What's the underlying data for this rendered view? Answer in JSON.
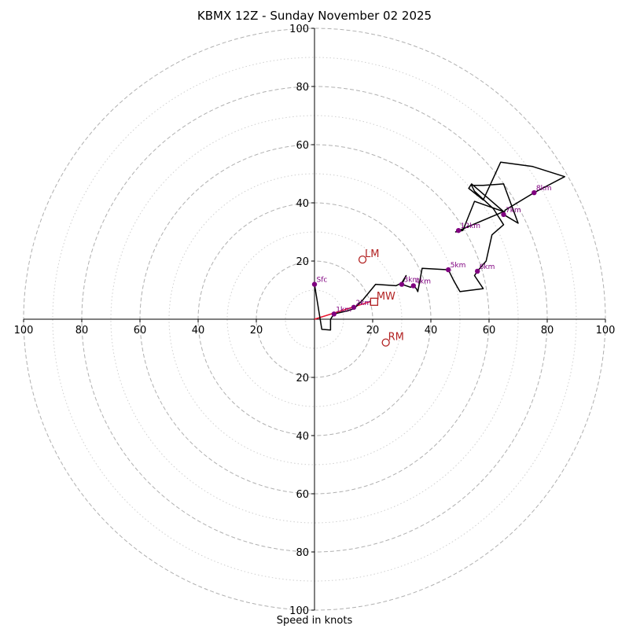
{
  "chart_data": {
    "type": "hodograph",
    "title": "KBMX 12Z - Sunday November 02 2025",
    "xlabel": "Speed in knots",
    "units": "knots",
    "range": [
      -100,
      100
    ],
    "major_rings": [
      20,
      40,
      60,
      80,
      100
    ],
    "minor_rings": [
      10,
      30,
      50,
      70,
      90
    ],
    "tick_labels": {
      "x_left": [
        "100",
        "80",
        "60",
        "40",
        "20"
      ],
      "x_right": [
        "20",
        "40",
        "60",
        "80",
        "100"
      ],
      "y_up": [
        "20",
        "40",
        "60",
        "80",
        "100"
      ],
      "y_down": [
        "20",
        "40",
        "60",
        "80",
        "100"
      ]
    },
    "trace": [
      [
        0,
        12
      ],
      [
        2.5,
        -3.5
      ],
      [
        5.5,
        -3.7
      ],
      [
        5.5,
        0
      ],
      [
        6.7,
        1.8
      ],
      [
        11,
        2.8
      ],
      [
        13.5,
        3.6
      ],
      [
        16.5,
        6.5
      ],
      [
        21,
        12
      ],
      [
        28,
        11.5
      ],
      [
        30,
        12.5
      ],
      [
        31.5,
        15
      ],
      [
        30,
        12
      ],
      [
        33,
        11
      ],
      [
        34,
        11.5
      ],
      [
        35,
        10.5
      ],
      [
        35.5,
        9.5
      ],
      [
        37,
        17.5
      ],
      [
        46,
        17
      ],
      [
        48,
        13
      ],
      [
        50,
        9.5
      ],
      [
        58,
        10.5
      ],
      [
        55,
        15
      ],
      [
        56,
        16.5
      ],
      [
        59,
        20
      ],
      [
        61,
        29
      ],
      [
        65,
        32.5
      ],
      [
        61.5,
        38
      ],
      [
        55,
        44
      ],
      [
        54,
        46
      ],
      [
        58,
        46
      ],
      [
        65,
        46.5
      ],
      [
        70,
        33
      ],
      [
        65,
        36
      ],
      [
        65.5,
        37.5
      ],
      [
        75.5,
        43.5
      ],
      [
        86,
        49
      ],
      [
        75,
        52.5
      ],
      [
        64,
        54
      ],
      [
        58,
        41
      ],
      [
        53,
        45
      ],
      [
        54,
        46.5
      ],
      [
        65,
        37
      ],
      [
        48.5,
        30
      ],
      [
        51,
        30.5
      ],
      [
        55,
        40.5
      ],
      [
        65,
        37
      ]
    ],
    "height_points": [
      {
        "label": "Sfc",
        "u": 0,
        "v": 12
      },
      {
        "label": "1km",
        "u": 6.7,
        "v": 1.8
      },
      {
        "label": "2km",
        "u": 13.5,
        "v": 4.1
      },
      {
        "label": "3km",
        "u": 30,
        "v": 12
      },
      {
        "label": "4km",
        "u": 34,
        "v": 11.5
      },
      {
        "label": "5km",
        "u": 46,
        "v": 17
      },
      {
        "label": "6km",
        "u": 56,
        "v": 16.5
      },
      {
        "label": "7km",
        "u": 65,
        "v": 36
      },
      {
        "label": "8km",
        "u": 75.5,
        "v": 43.5
      },
      {
        "label": "12km",
        "u": 49.5,
        "v": 30.5
      }
    ],
    "storm_motion": [
      {
        "label": "LM",
        "u": 16.5,
        "v": 20.5,
        "marker": "circle"
      },
      {
        "label": "RM",
        "u": 24.5,
        "v": -8,
        "marker": "circle"
      },
      {
        "label": "MW",
        "u": 20.5,
        "v": 6,
        "marker": "square"
      }
    ],
    "shear_vector": {
      "u0": 0,
      "v0": 0,
      "u1": 19,
      "v1": 6
    },
    "colors": {
      "trace": "#000000",
      "height_points": "#800080",
      "storm_motion": "#b22222",
      "shear_vector": "#e8112d",
      "grid": "#b0b0b0"
    }
  }
}
